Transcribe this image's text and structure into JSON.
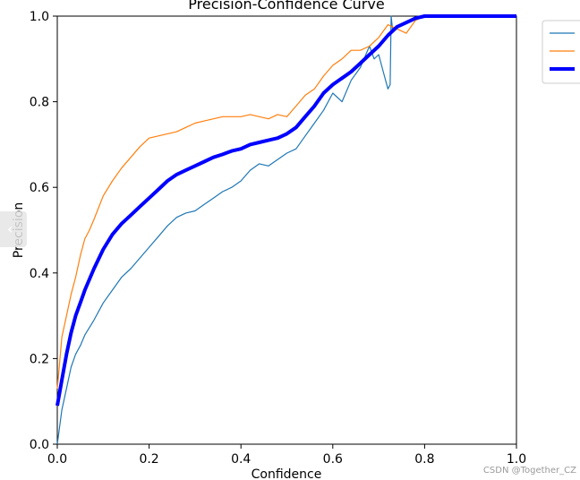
{
  "chart_data": {
    "type": "line",
    "title": "Precision-Confidence Curve",
    "xlabel": "Confidence",
    "ylabel": "Precision",
    "xlim": [
      0.0,
      1.0
    ],
    "ylim": [
      0.0,
      1.0
    ],
    "xticks": [
      "0.0",
      "0.2",
      "0.4",
      "0.6",
      "0.8",
      "1.0"
    ],
    "yticks": [
      "0.0",
      "0.2",
      "0.4",
      "0.6",
      "0.8",
      "1.0"
    ],
    "grid": false,
    "legend": "upper-right-outside",
    "series": [
      {
        "color": "#1f77b4",
        "width": 1.2,
        "x": [
          0.0,
          0.01,
          0.02,
          0.03,
          0.04,
          0.05,
          0.06,
          0.08,
          0.1,
          0.12,
          0.14,
          0.16,
          0.18,
          0.2,
          0.22,
          0.24,
          0.26,
          0.28,
          0.3,
          0.32,
          0.34,
          0.36,
          0.38,
          0.4,
          0.42,
          0.44,
          0.46,
          0.48,
          0.5,
          0.52,
          0.54,
          0.56,
          0.58,
          0.6,
          0.62,
          0.64,
          0.66,
          0.68,
          0.69,
          0.7,
          0.71,
          0.72,
          0.725,
          0.727,
          0.73,
          0.75,
          0.8,
          0.9,
          1.0
        ],
        "y": [
          0.0,
          0.08,
          0.13,
          0.18,
          0.21,
          0.23,
          0.255,
          0.29,
          0.33,
          0.36,
          0.39,
          0.41,
          0.435,
          0.46,
          0.485,
          0.51,
          0.53,
          0.54,
          0.545,
          0.56,
          0.575,
          0.59,
          0.6,
          0.615,
          0.64,
          0.655,
          0.65,
          0.665,
          0.68,
          0.69,
          0.72,
          0.75,
          0.78,
          0.82,
          0.8,
          0.85,
          0.88,
          0.93,
          0.9,
          0.91,
          0.87,
          0.83,
          0.84,
          1.0,
          0.97,
          0.98,
          1.0,
          1.0,
          1.0
        ]
      },
      {
        "color": "#ff7f0e",
        "width": 1.2,
        "x": [
          0.0,
          0.005,
          0.01,
          0.02,
          0.03,
          0.04,
          0.05,
          0.06,
          0.07,
          0.08,
          0.1,
          0.12,
          0.14,
          0.16,
          0.18,
          0.2,
          0.22,
          0.24,
          0.26,
          0.28,
          0.3,
          0.32,
          0.34,
          0.36,
          0.38,
          0.4,
          0.42,
          0.44,
          0.46,
          0.48,
          0.5,
          0.52,
          0.54,
          0.56,
          0.58,
          0.6,
          0.62,
          0.64,
          0.66,
          0.68,
          0.7,
          0.72,
          0.74,
          0.76,
          0.78,
          0.8,
          0.9,
          1.0
        ],
        "y": [
          0.13,
          0.19,
          0.25,
          0.3,
          0.35,
          0.39,
          0.44,
          0.48,
          0.5,
          0.525,
          0.58,
          0.615,
          0.645,
          0.67,
          0.695,
          0.715,
          0.72,
          0.725,
          0.73,
          0.74,
          0.75,
          0.755,
          0.76,
          0.765,
          0.765,
          0.765,
          0.77,
          0.765,
          0.76,
          0.77,
          0.765,
          0.79,
          0.815,
          0.83,
          0.86,
          0.885,
          0.9,
          0.92,
          0.92,
          0.93,
          0.95,
          0.98,
          0.97,
          0.96,
          0.99,
          1.0,
          1.0,
          1.0
        ]
      },
      {
        "color": "#0000ff",
        "width": 4,
        "x": [
          0.0,
          0.01,
          0.02,
          0.03,
          0.04,
          0.05,
          0.06,
          0.08,
          0.1,
          0.12,
          0.14,
          0.16,
          0.18,
          0.2,
          0.22,
          0.24,
          0.26,
          0.28,
          0.3,
          0.32,
          0.34,
          0.36,
          0.38,
          0.4,
          0.42,
          0.44,
          0.46,
          0.48,
          0.5,
          0.52,
          0.54,
          0.56,
          0.58,
          0.6,
          0.62,
          0.64,
          0.66,
          0.68,
          0.7,
          0.72,
          0.74,
          0.76,
          0.78,
          0.8,
          0.9,
          1.0
        ],
        "y": [
          0.09,
          0.15,
          0.21,
          0.26,
          0.3,
          0.33,
          0.36,
          0.41,
          0.455,
          0.49,
          0.515,
          0.535,
          0.555,
          0.575,
          0.595,
          0.615,
          0.63,
          0.64,
          0.65,
          0.66,
          0.67,
          0.677,
          0.685,
          0.69,
          0.7,
          0.705,
          0.71,
          0.715,
          0.725,
          0.74,
          0.765,
          0.79,
          0.82,
          0.84,
          0.855,
          0.87,
          0.89,
          0.91,
          0.93,
          0.955,
          0.975,
          0.985,
          0.995,
          1.0,
          1.0,
          1.0
        ]
      }
    ]
  },
  "watermark": "CSDN @Together_CZ",
  "side_tab_glyph": "‹"
}
